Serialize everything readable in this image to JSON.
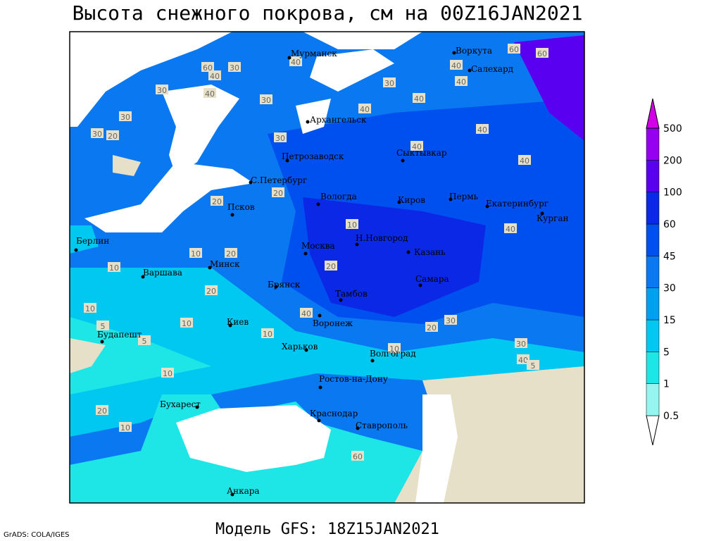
{
  "title": "Высота снежного покрова, см на 00Z16JAN2021",
  "footer": "Модель GFS: 18Z15JAN2021",
  "credit": "GrADS: COLA/IGES",
  "colorbar": {
    "levels": [
      0.5,
      1,
      5,
      15,
      30,
      45,
      60,
      100,
      200,
      500
    ],
    "colors": [
      "#ffffff",
      "#96f5f0",
      "#1ee6e6",
      "#00c8f0",
      "#00a0f0",
      "#0a78f0",
      "#0050f0",
      "#0a28e6",
      "#5a00f0",
      "#9600f0",
      "#d200e6"
    ]
  },
  "cities": [
    "Мурманск",
    "Воркута",
    "Салехард",
    "Архангельск",
    "Петрозаводск",
    "Сыктывкар",
    "С.Петербург",
    "Вологда",
    "Киров",
    "Пермь",
    "Екатеринбург",
    "Курган",
    "Псков",
    "Берлин",
    "Москва",
    "Н.Новгород",
    "Казань",
    "Минск",
    "Варшава",
    "Брянск",
    "Самара",
    "Тамбов",
    "Киев",
    "Воронеж",
    "Будапешт",
    "Харьков",
    "Волгоград",
    "Ростов-на-Дону",
    "Бухарест",
    "Краснодар",
    "Ставрополь",
    "Анкара"
  ],
  "contour_labels": [
    60,
    40,
    30,
    40,
    30,
    30,
    20,
    30,
    30,
    40,
    60,
    60,
    40,
    40,
    30,
    40,
    40,
    40,
    40,
    40,
    20,
    20,
    30,
    10,
    20,
    10,
    10,
    20,
    10,
    10,
    5,
    5,
    10,
    10,
    20,
    10,
    20,
    40,
    30,
    20,
    40,
    10,
    5,
    60,
    40,
    30
  ]
}
